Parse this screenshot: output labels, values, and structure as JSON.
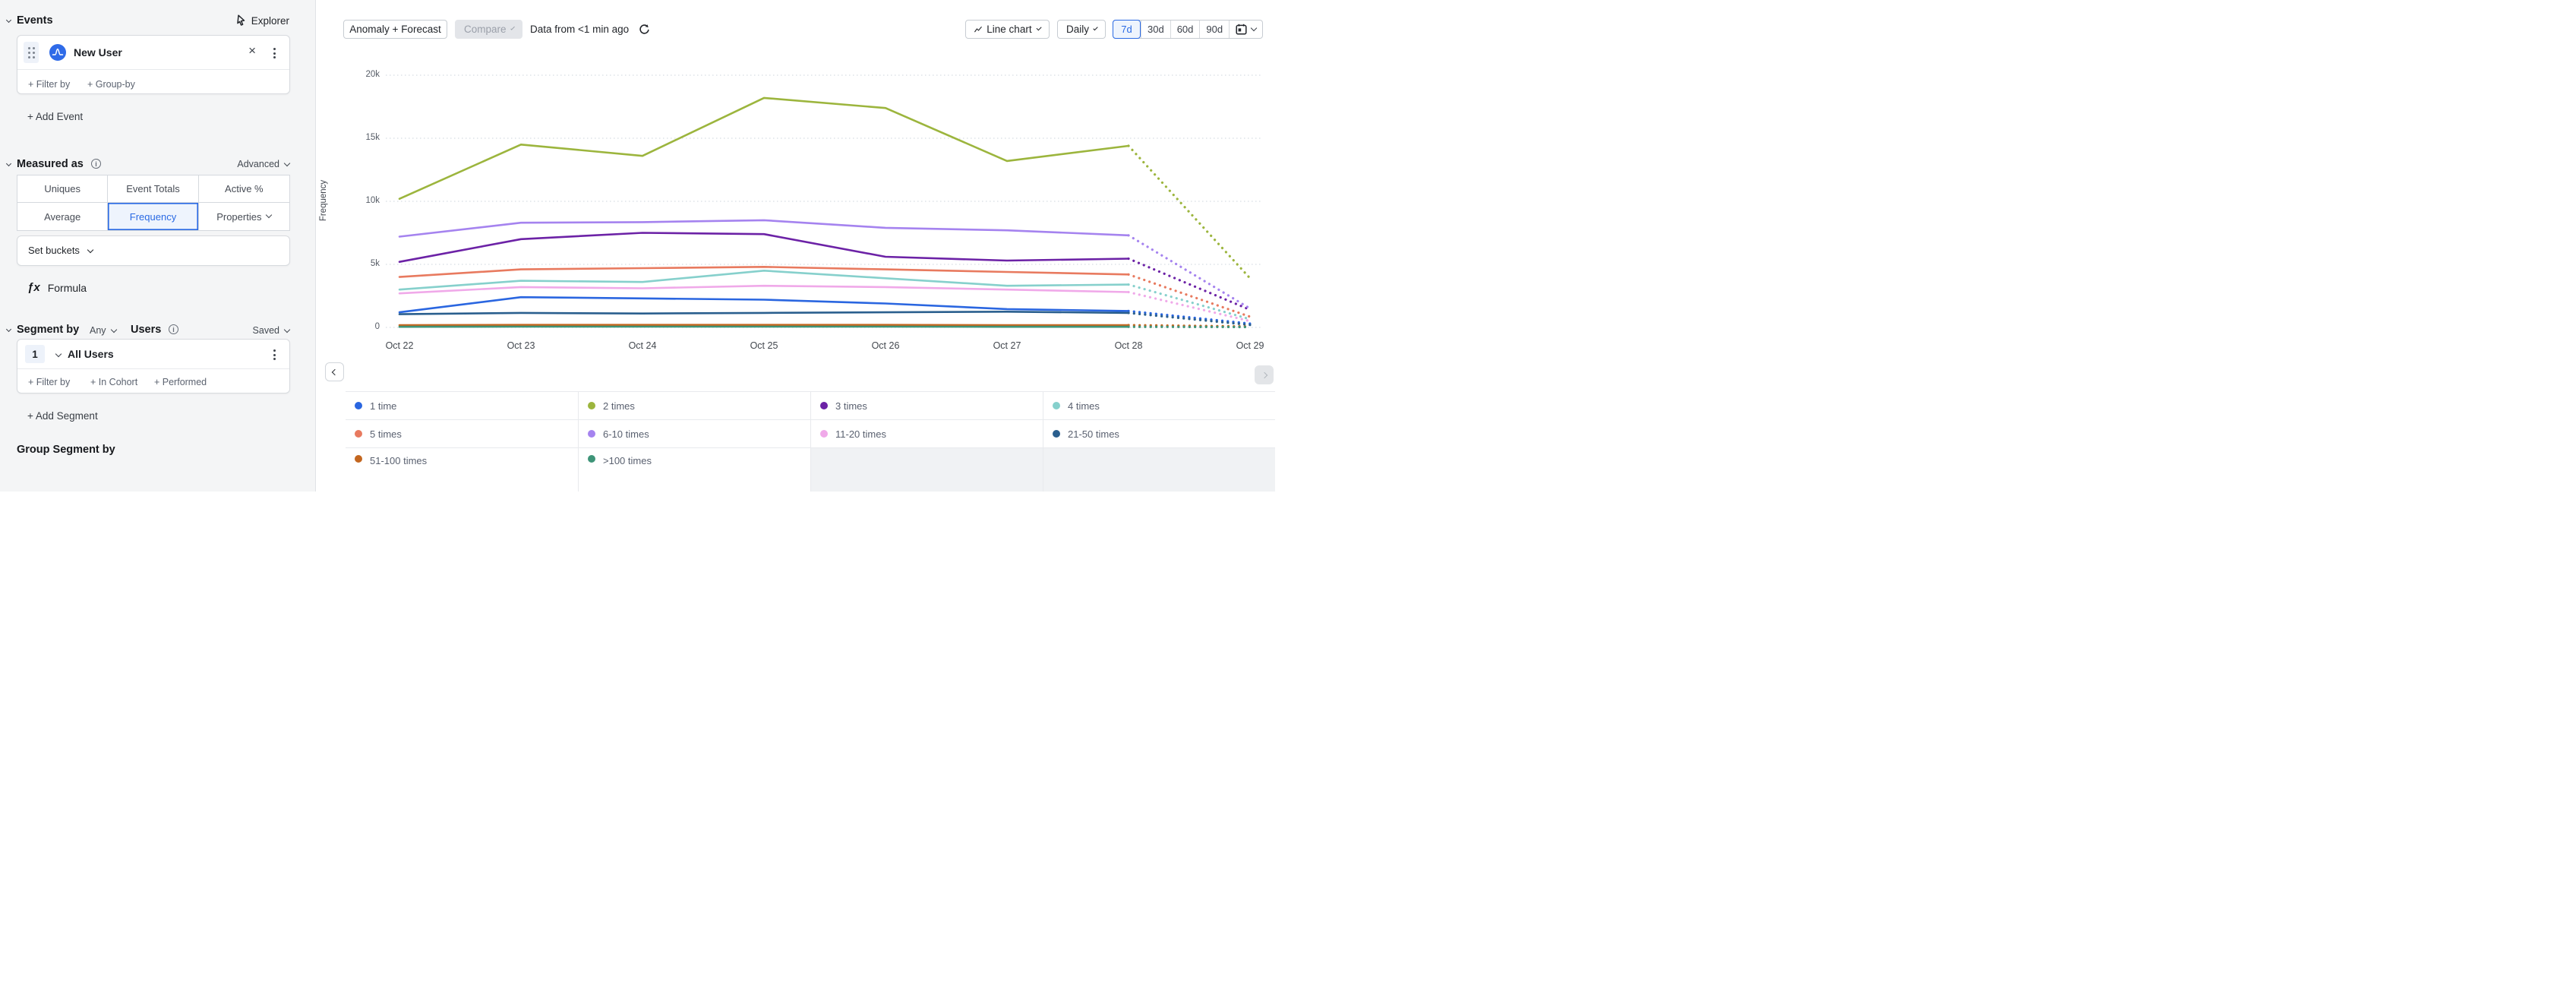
{
  "sidebar": {
    "events_title": "Events",
    "explorer": "Explorer",
    "event_card": {
      "name": "New User",
      "filter_by": "+ Filter by",
      "group_by": "+ Group-by"
    },
    "add_event": "+ Add Event",
    "measured": {
      "title": "Measured as",
      "advanced": "Advanced",
      "tabs": [
        "Uniques",
        "Event Totals",
        "Active %",
        "Average",
        "Frequency",
        "Properties"
      ],
      "selected_tab": "Frequency"
    },
    "set_buckets": "Set buckets",
    "formula_fx": "ƒx",
    "formula_label": "Formula",
    "segment": {
      "title": "Segment by",
      "any": "Any",
      "users": "Users",
      "saved": "Saved",
      "index": "1",
      "name": "All Users",
      "filter_by": "+ Filter by",
      "in_cohort": "+ In Cohort",
      "performed": "+ Performed"
    },
    "add_segment": "+ Add Segment",
    "group_segment": "Group Segment by"
  },
  "toolbar": {
    "anomaly_forecast": "Anomaly + Forecast",
    "compare": "Compare",
    "data_freshness": "Data from <1 min ago",
    "chart_type": "Line chart",
    "granularity": "Daily",
    "ranges": [
      "7d",
      "30d",
      "60d",
      "90d"
    ],
    "selected_range": "7d"
  },
  "chart_data": {
    "type": "line",
    "ylabel": "Frequency",
    "x": [
      "Oct 22",
      "Oct 23",
      "Oct 24",
      "Oct 25",
      "Oct 26",
      "Oct 27",
      "Oct 28",
      "Oct 29"
    ],
    "ylim": [
      0,
      20000
    ],
    "yticks": [
      {
        "label": "20k",
        "value": 20000
      },
      {
        "label": "15k",
        "value": 15000
      },
      {
        "label": "10k",
        "value": 10000
      },
      {
        "label": "5k",
        "value": 5000
      },
      {
        "label": "0",
        "value": 0
      }
    ],
    "grid": "dotted horizontal",
    "legend_position": "bottom",
    "forecast_note": "values after Oct 28 are dotted forecast segments ending at Oct 29",
    "series": [
      {
        "name": "1 time",
        "color": "#2a66e0",
        "values": [
          1200,
          2400,
          2300,
          2200,
          1900,
          1450,
          1300
        ],
        "forecast_oct29": 300
      },
      {
        "name": "2 times",
        "color": "#9cb53d",
        "values": [
          10200,
          14500,
          13600,
          18200,
          17400,
          13200,
          14400
        ],
        "forecast_oct29": 3900
      },
      {
        "name": "3 times",
        "color": "#6c22a6",
        "values": [
          5200,
          7000,
          7500,
          7400,
          5600,
          5300,
          5450
        ],
        "forecast_oct29": 1400
      },
      {
        "name": "4 times",
        "color": "#86d0cc",
        "values": [
          3000,
          3700,
          3600,
          4500,
          3900,
          3300,
          3400
        ],
        "forecast_oct29": 650
      },
      {
        "name": "5 times",
        "color": "#e87a5f",
        "values": [
          4000,
          4600,
          4700,
          4800,
          4600,
          4400,
          4200
        ],
        "forecast_oct29": 850
      },
      {
        "name": "6-10 times",
        "color": "#a583ef",
        "values": [
          7200,
          8300,
          8350,
          8500,
          7900,
          7700,
          7300
        ],
        "forecast_oct29": 1500
      },
      {
        "name": "11-20 times",
        "color": "#f0a9e9",
        "values": [
          2700,
          3200,
          3100,
          3300,
          3200,
          3000,
          2800
        ],
        "forecast_oct29": 500
      },
      {
        "name": "21-50 times",
        "color": "#2a5f8e",
        "values": [
          1050,
          1150,
          1100,
          1150,
          1200,
          1250,
          1150
        ],
        "forecast_oct29": 200
      },
      {
        "name": "51-100 times",
        "color": "#c3661f",
        "values": [
          180,
          200,
          200,
          200,
          200,
          180,
          180
        ],
        "forecast_oct29": 70
      },
      {
        "name": ">100 times",
        "color": "#3e9478",
        "values": [
          50,
          60,
          60,
          60,
          60,
          50,
          50
        ],
        "forecast_oct29": 30
      }
    ]
  }
}
